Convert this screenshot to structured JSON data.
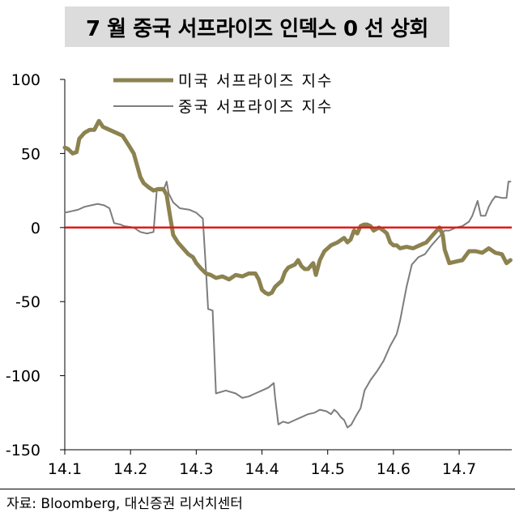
{
  "title": "7 월 중국 서프라이즈 인덱스 0 선 상회",
  "source": "자료: Bloomberg, 대신증권 리서치센터",
  "chart_data": {
    "type": "line",
    "ylim": [
      -150,
      100
    ],
    "yticks": [
      100,
      50,
      0,
      -50,
      -100,
      -150
    ],
    "xlim": [
      14.1,
      14.78
    ],
    "xticks": [
      14.1,
      14.2,
      14.3,
      14.4,
      14.5,
      14.6,
      14.7
    ],
    "xtick_labels": [
      "14.1",
      "14.2",
      "14.3",
      "14.4",
      "14.5",
      "14.6",
      "14.7"
    ],
    "legend_position": "top",
    "zero_line_color": "#e01b1b",
    "series": [
      {
        "name": "미국 서프라이즈 지수",
        "color": "#8c8250",
        "points": [
          [
            14.1,
            54
          ],
          [
            14.105,
            53
          ],
          [
            14.112,
            50
          ],
          [
            14.118,
            51
          ],
          [
            14.122,
            60
          ],
          [
            14.13,
            64
          ],
          [
            14.138,
            66
          ],
          [
            14.145,
            66
          ],
          [
            14.152,
            72
          ],
          [
            14.158,
            68
          ],
          [
            14.168,
            66
          ],
          [
            14.178,
            64
          ],
          [
            14.188,
            62
          ],
          [
            14.198,
            55
          ],
          [
            14.205,
            50
          ],
          [
            14.21,
            42
          ],
          [
            14.215,
            34
          ],
          [
            14.22,
            30
          ],
          [
            14.228,
            27
          ],
          [
            14.235,
            25
          ],
          [
            14.242,
            26
          ],
          [
            14.25,
            26
          ],
          [
            14.255,
            22
          ],
          [
            14.26,
            8
          ],
          [
            14.265,
            -5
          ],
          [
            14.272,
            -10
          ],
          [
            14.28,
            -14
          ],
          [
            14.288,
            -18
          ],
          [
            14.295,
            -20
          ],
          [
            14.3,
            -24
          ],
          [
            14.308,
            -28
          ],
          [
            14.315,
            -31
          ],
          [
            14.322,
            -32
          ],
          [
            14.33,
            -34
          ],
          [
            14.34,
            -33
          ],
          [
            14.35,
            -35
          ],
          [
            14.36,
            -32
          ],
          [
            14.37,
            -33
          ],
          [
            14.38,
            -31
          ],
          [
            14.39,
            -31
          ],
          [
            14.395,
            -35
          ],
          [
            14.4,
            -42
          ],
          [
            14.405,
            -44
          ],
          [
            14.41,
            -45
          ],
          [
            14.415,
            -44
          ],
          [
            14.42,
            -40
          ],
          [
            14.43,
            -36
          ],
          [
            14.435,
            -30
          ],
          [
            14.44,
            -27
          ],
          [
            14.45,
            -25
          ],
          [
            14.455,
            -22
          ],
          [
            14.46,
            -26
          ],
          [
            14.465,
            -28
          ],
          [
            14.47,
            -28
          ],
          [
            14.478,
            -24
          ],
          [
            14.482,
            -32
          ],
          [
            14.488,
            -22
          ],
          [
            14.495,
            -16
          ],
          [
            14.505,
            -12
          ],
          [
            14.515,
            -10
          ],
          [
            14.525,
            -7
          ],
          [
            14.53,
            -10
          ],
          [
            14.535,
            -8
          ],
          [
            14.54,
            -2
          ],
          [
            14.545,
            -4
          ],
          [
            14.55,
            1
          ],
          [
            14.555,
            2
          ],
          [
            14.56,
            2
          ],
          [
            14.565,
            1
          ],
          [
            14.57,
            -2
          ],
          [
            14.578,
            0
          ],
          [
            14.585,
            -2
          ],
          [
            14.59,
            -4
          ],
          [
            14.595,
            -10
          ],
          [
            14.6,
            -12
          ],
          [
            14.605,
            -12
          ],
          [
            14.61,
            -14
          ],
          [
            14.62,
            -13
          ],
          [
            14.63,
            -14
          ],
          [
            14.64,
            -12
          ],
          [
            14.65,
            -10
          ],
          [
            14.66,
            -5
          ],
          [
            14.67,
            0
          ],
          [
            14.675,
            -5
          ],
          [
            14.678,
            -15
          ],
          [
            14.685,
            -24
          ],
          [
            14.695,
            -23
          ],
          [
            14.705,
            -22
          ],
          [
            14.715,
            -16
          ],
          [
            14.725,
            -16
          ],
          [
            14.735,
            -17
          ],
          [
            14.745,
            -14
          ],
          [
            14.755,
            -17
          ],
          [
            14.765,
            -18
          ],
          [
            14.772,
            -24
          ],
          [
            14.778,
            -22
          ]
        ]
      },
      {
        "name": "중국 서프라이즈 지수",
        "color": "#7d7d7d",
        "points": [
          [
            14.1,
            10
          ],
          [
            14.11,
            11
          ],
          [
            14.12,
            12
          ],
          [
            14.13,
            14
          ],
          [
            14.14,
            15
          ],
          [
            14.15,
            16
          ],
          [
            14.16,
            15
          ],
          [
            14.168,
            13
          ],
          [
            14.175,
            3
          ],
          [
            14.185,
            2
          ],
          [
            14.19,
            1
          ],
          [
            14.205,
            0
          ],
          [
            14.215,
            -3
          ],
          [
            14.225,
            -4
          ],
          [
            14.235,
            -3
          ],
          [
            14.24,
            25
          ],
          [
            14.25,
            25
          ],
          [
            14.255,
            31
          ],
          [
            14.258,
            23
          ],
          [
            14.265,
            17
          ],
          [
            14.275,
            13
          ],
          [
            14.29,
            12
          ],
          [
            14.3,
            10
          ],
          [
            14.31,
            6
          ],
          [
            14.315,
            -30
          ],
          [
            14.318,
            -55
          ],
          [
            14.325,
            -56
          ],
          [
            14.33,
            -112
          ],
          [
            14.345,
            -110
          ],
          [
            14.36,
            -112
          ],
          [
            14.37,
            -115
          ],
          [
            14.38,
            -114
          ],
          [
            14.39,
            -112
          ],
          [
            14.4,
            -110
          ],
          [
            14.41,
            -108
          ],
          [
            14.418,
            -105
          ],
          [
            14.42,
            -115
          ],
          [
            14.425,
            -133
          ],
          [
            14.432,
            -131
          ],
          [
            14.44,
            -132
          ],
          [
            14.45,
            -130
          ],
          [
            14.46,
            -128
          ],
          [
            14.47,
            -126
          ],
          [
            14.48,
            -125
          ],
          [
            14.488,
            -123
          ],
          [
            14.498,
            -124
          ],
          [
            14.505,
            -126
          ],
          [
            14.51,
            -123
          ],
          [
            14.515,
            -125
          ],
          [
            14.52,
            -128
          ],
          [
            14.525,
            -130
          ],
          [
            14.53,
            -135
          ],
          [
            14.536,
            -133
          ],
          [
            14.542,
            -128
          ],
          [
            14.55,
            -122
          ],
          [
            14.556,
            -110
          ],
          [
            14.565,
            -103
          ],
          [
            14.575,
            -97
          ],
          [
            14.585,
            -90
          ],
          [
            14.595,
            -80
          ],
          [
            14.605,
            -72
          ],
          [
            14.61,
            -63
          ],
          [
            14.62,
            -40
          ],
          [
            14.628,
            -25
          ],
          [
            14.638,
            -20
          ],
          [
            14.648,
            -18
          ],
          [
            14.658,
            -12
          ],
          [
            14.668,
            -7
          ],
          [
            14.678,
            -2
          ],
          [
            14.685,
            -2
          ],
          [
            14.695,
            0
          ],
          [
            14.705,
            1
          ],
          [
            14.715,
            4
          ],
          [
            14.72,
            8
          ],
          [
            14.728,
            18
          ],
          [
            14.733,
            8
          ],
          [
            14.74,
            8
          ],
          [
            14.745,
            14
          ],
          [
            14.75,
            18
          ],
          [
            14.755,
            21
          ],
          [
            14.765,
            20
          ],
          [
            14.772,
            20
          ],
          [
            14.775,
            31
          ],
          [
            14.778,
            31
          ]
        ]
      }
    ]
  }
}
